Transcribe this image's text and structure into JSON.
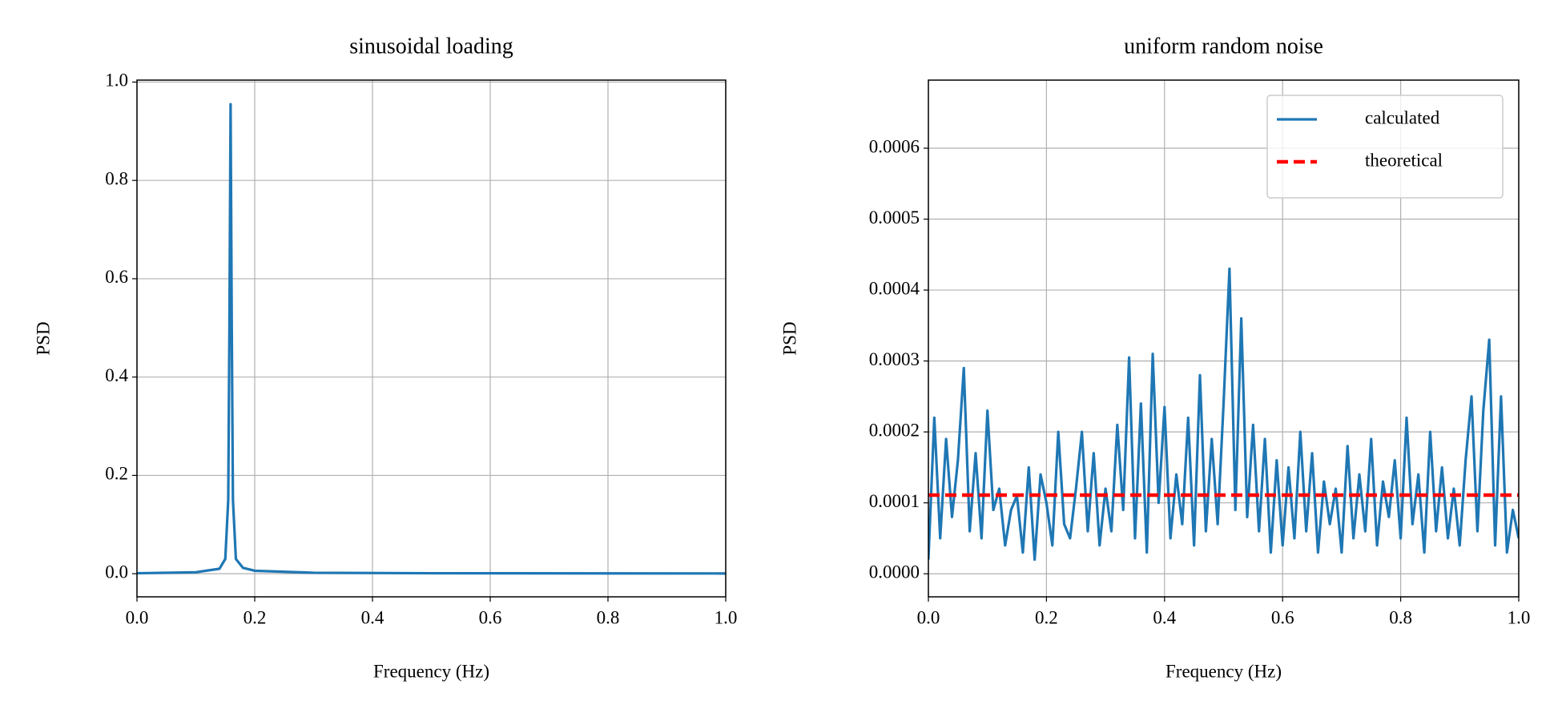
{
  "chart_data": [
    {
      "type": "line",
      "title": "sinusoidal loading",
      "xlabel": "Frequency (Hz)",
      "ylabel": "PSD",
      "grid": true,
      "xlim": [
        0,
        1
      ],
      "ylim": [
        -0.047,
        1.004
      ],
      "xticks": [
        {
          "value": 0,
          "label": "0.0"
        },
        {
          "value": 0.2,
          "label": "0.2"
        },
        {
          "value": 0.4,
          "label": "0.4"
        },
        {
          "value": 0.6,
          "label": "0.6"
        },
        {
          "value": 0.8,
          "label": "0.8"
        },
        {
          "value": 1,
          "label": "1.0"
        }
      ],
      "yticks": [
        {
          "value": 0,
          "label": "0.0"
        },
        {
          "value": 0.2,
          "label": "0.2"
        },
        {
          "value": 0.4,
          "label": "0.4"
        },
        {
          "value": 0.6,
          "label": "0.6"
        },
        {
          "value": 0.8,
          "label": "0.8"
        },
        {
          "value": 1,
          "label": "1.0"
        }
      ],
      "series": [
        {
          "color": "#1f77b4",
          "linestyle": "solid",
          "x": [
            0,
            0.1,
            0.14,
            0.15,
            0.155,
            0.157,
            0.159,
            0.161,
            0.163,
            0.168,
            0.18,
            0.2,
            0.3,
            0.5,
            1.0
          ],
          "values": [
            0.001,
            0.003,
            0.01,
            0.03,
            0.15,
            0.5,
            0.955,
            0.5,
            0.15,
            0.03,
            0.012,
            0.006,
            0.002,
            0.001,
            0.0005
          ]
        }
      ]
    },
    {
      "type": "line",
      "title": "uniform random noise",
      "xlabel": "Frequency (Hz)",
      "ylabel": "PSD",
      "grid": true,
      "legend": "upper right",
      "xlim": [
        0,
        1
      ],
      "ylim": [
        -3.25e-05,
        0.000696
      ],
      "xticks": [
        {
          "value": 0,
          "label": "0.0"
        },
        {
          "value": 0.2,
          "label": "0.2"
        },
        {
          "value": 0.4,
          "label": "0.4"
        },
        {
          "value": 0.6,
          "label": "0.6"
        },
        {
          "value": 0.8,
          "label": "0.8"
        },
        {
          "value": 1,
          "label": "1.0"
        }
      ],
      "yticks": [
        {
          "value": 0,
          "label": "0.0000"
        },
        {
          "value": 0.0001,
          "label": "0.0001"
        },
        {
          "value": 0.0002,
          "label": "0.0002"
        },
        {
          "value": 0.0003,
          "label": "0.0003"
        },
        {
          "value": 0.0004,
          "label": "0.0004"
        },
        {
          "value": 0.0005,
          "label": "0.0005"
        },
        {
          "value": 0.0006,
          "label": "0.0006"
        }
      ],
      "series": [
        {
          "name": "calculated",
          "color": "#1f77b4",
          "linestyle": "solid",
          "x": [
            0,
            0.01,
            0.02,
            0.03,
            0.04,
            0.05,
            0.06,
            0.07,
            0.08,
            0.09,
            0.1,
            0.11,
            0.12,
            0.13,
            0.14,
            0.15,
            0.16,
            0.17,
            0.18,
            0.19,
            0.2,
            0.21,
            0.22,
            0.23,
            0.24,
            0.25,
            0.26,
            0.27,
            0.28,
            0.29,
            0.3,
            0.31,
            0.32,
            0.33,
            0.34,
            0.35,
            0.36,
            0.37,
            0.38,
            0.39,
            0.4,
            0.41,
            0.42,
            0.43,
            0.44,
            0.45,
            0.46,
            0.47,
            0.48,
            0.49,
            0.5,
            0.51,
            0.52,
            0.53,
            0.54,
            0.55,
            0.56,
            0.57,
            0.58,
            0.59,
            0.6,
            0.61,
            0.62,
            0.63,
            0.64,
            0.65,
            0.66,
            0.67,
            0.68,
            0.69,
            0.7,
            0.71,
            0.72,
            0.73,
            0.74,
            0.75,
            0.76,
            0.77,
            0.78,
            0.79,
            0.8,
            0.81,
            0.82,
            0.83,
            0.84,
            0.85,
            0.86,
            0.87,
            0.88,
            0.89,
            0.9,
            0.91,
            0.92,
            0.93,
            0.94,
            0.95,
            0.96,
            0.97,
            0.98,
            0.99,
            1.0
          ],
          "values": [
            2e-05,
            0.00022,
            5e-05,
            0.00019,
            8e-05,
            0.00016,
            0.00029,
            6e-05,
            0.00017,
            5e-05,
            0.00023,
            9e-05,
            0.00012,
            4e-05,
            9e-05,
            0.00011,
            3e-05,
            0.00015,
            2e-05,
            0.00014,
            0.0001,
            4e-05,
            0.0002,
            7e-05,
            5e-05,
            0.00012,
            0.0002,
            6e-05,
            0.00017,
            4e-05,
            0.00012,
            6e-05,
            0.00021,
            9e-05,
            0.000305,
            5e-05,
            0.00024,
            3e-05,
            0.00031,
            0.0001,
            0.000235,
            5e-05,
            0.00014,
            7e-05,
            0.00022,
            4e-05,
            0.00028,
            6e-05,
            0.00019,
            7e-05,
            0.00024,
            0.00043,
            9e-05,
            0.00036,
            8e-05,
            0.00021,
            6e-05,
            0.00019,
            3e-05,
            0.00016,
            4e-05,
            0.00015,
            5e-05,
            0.0002,
            6e-05,
            0.00017,
            3e-05,
            0.00013,
            7e-05,
            0.00012,
            3e-05,
            0.00018,
            5e-05,
            0.00014,
            6e-05,
            0.00019,
            4e-05,
            0.00013,
            8e-05,
            0.00016,
            5e-05,
            0.00022,
            7e-05,
            0.00014,
            3e-05,
            0.0002,
            6e-05,
            0.00015,
            5e-05,
            0.00012,
            4e-05,
            0.00016,
            0.00025,
            6e-05,
            0.00023,
            0.00033,
            4e-05,
            0.00025,
            3e-05,
            9e-05,
            5e-05
          ]
        },
        {
          "name": "theoretical",
          "color": "#ff0000",
          "linestyle": "dashed",
          "x": [
            0,
            1
          ],
          "values": [
            0.000111,
            0.000111
          ]
        }
      ]
    }
  ]
}
